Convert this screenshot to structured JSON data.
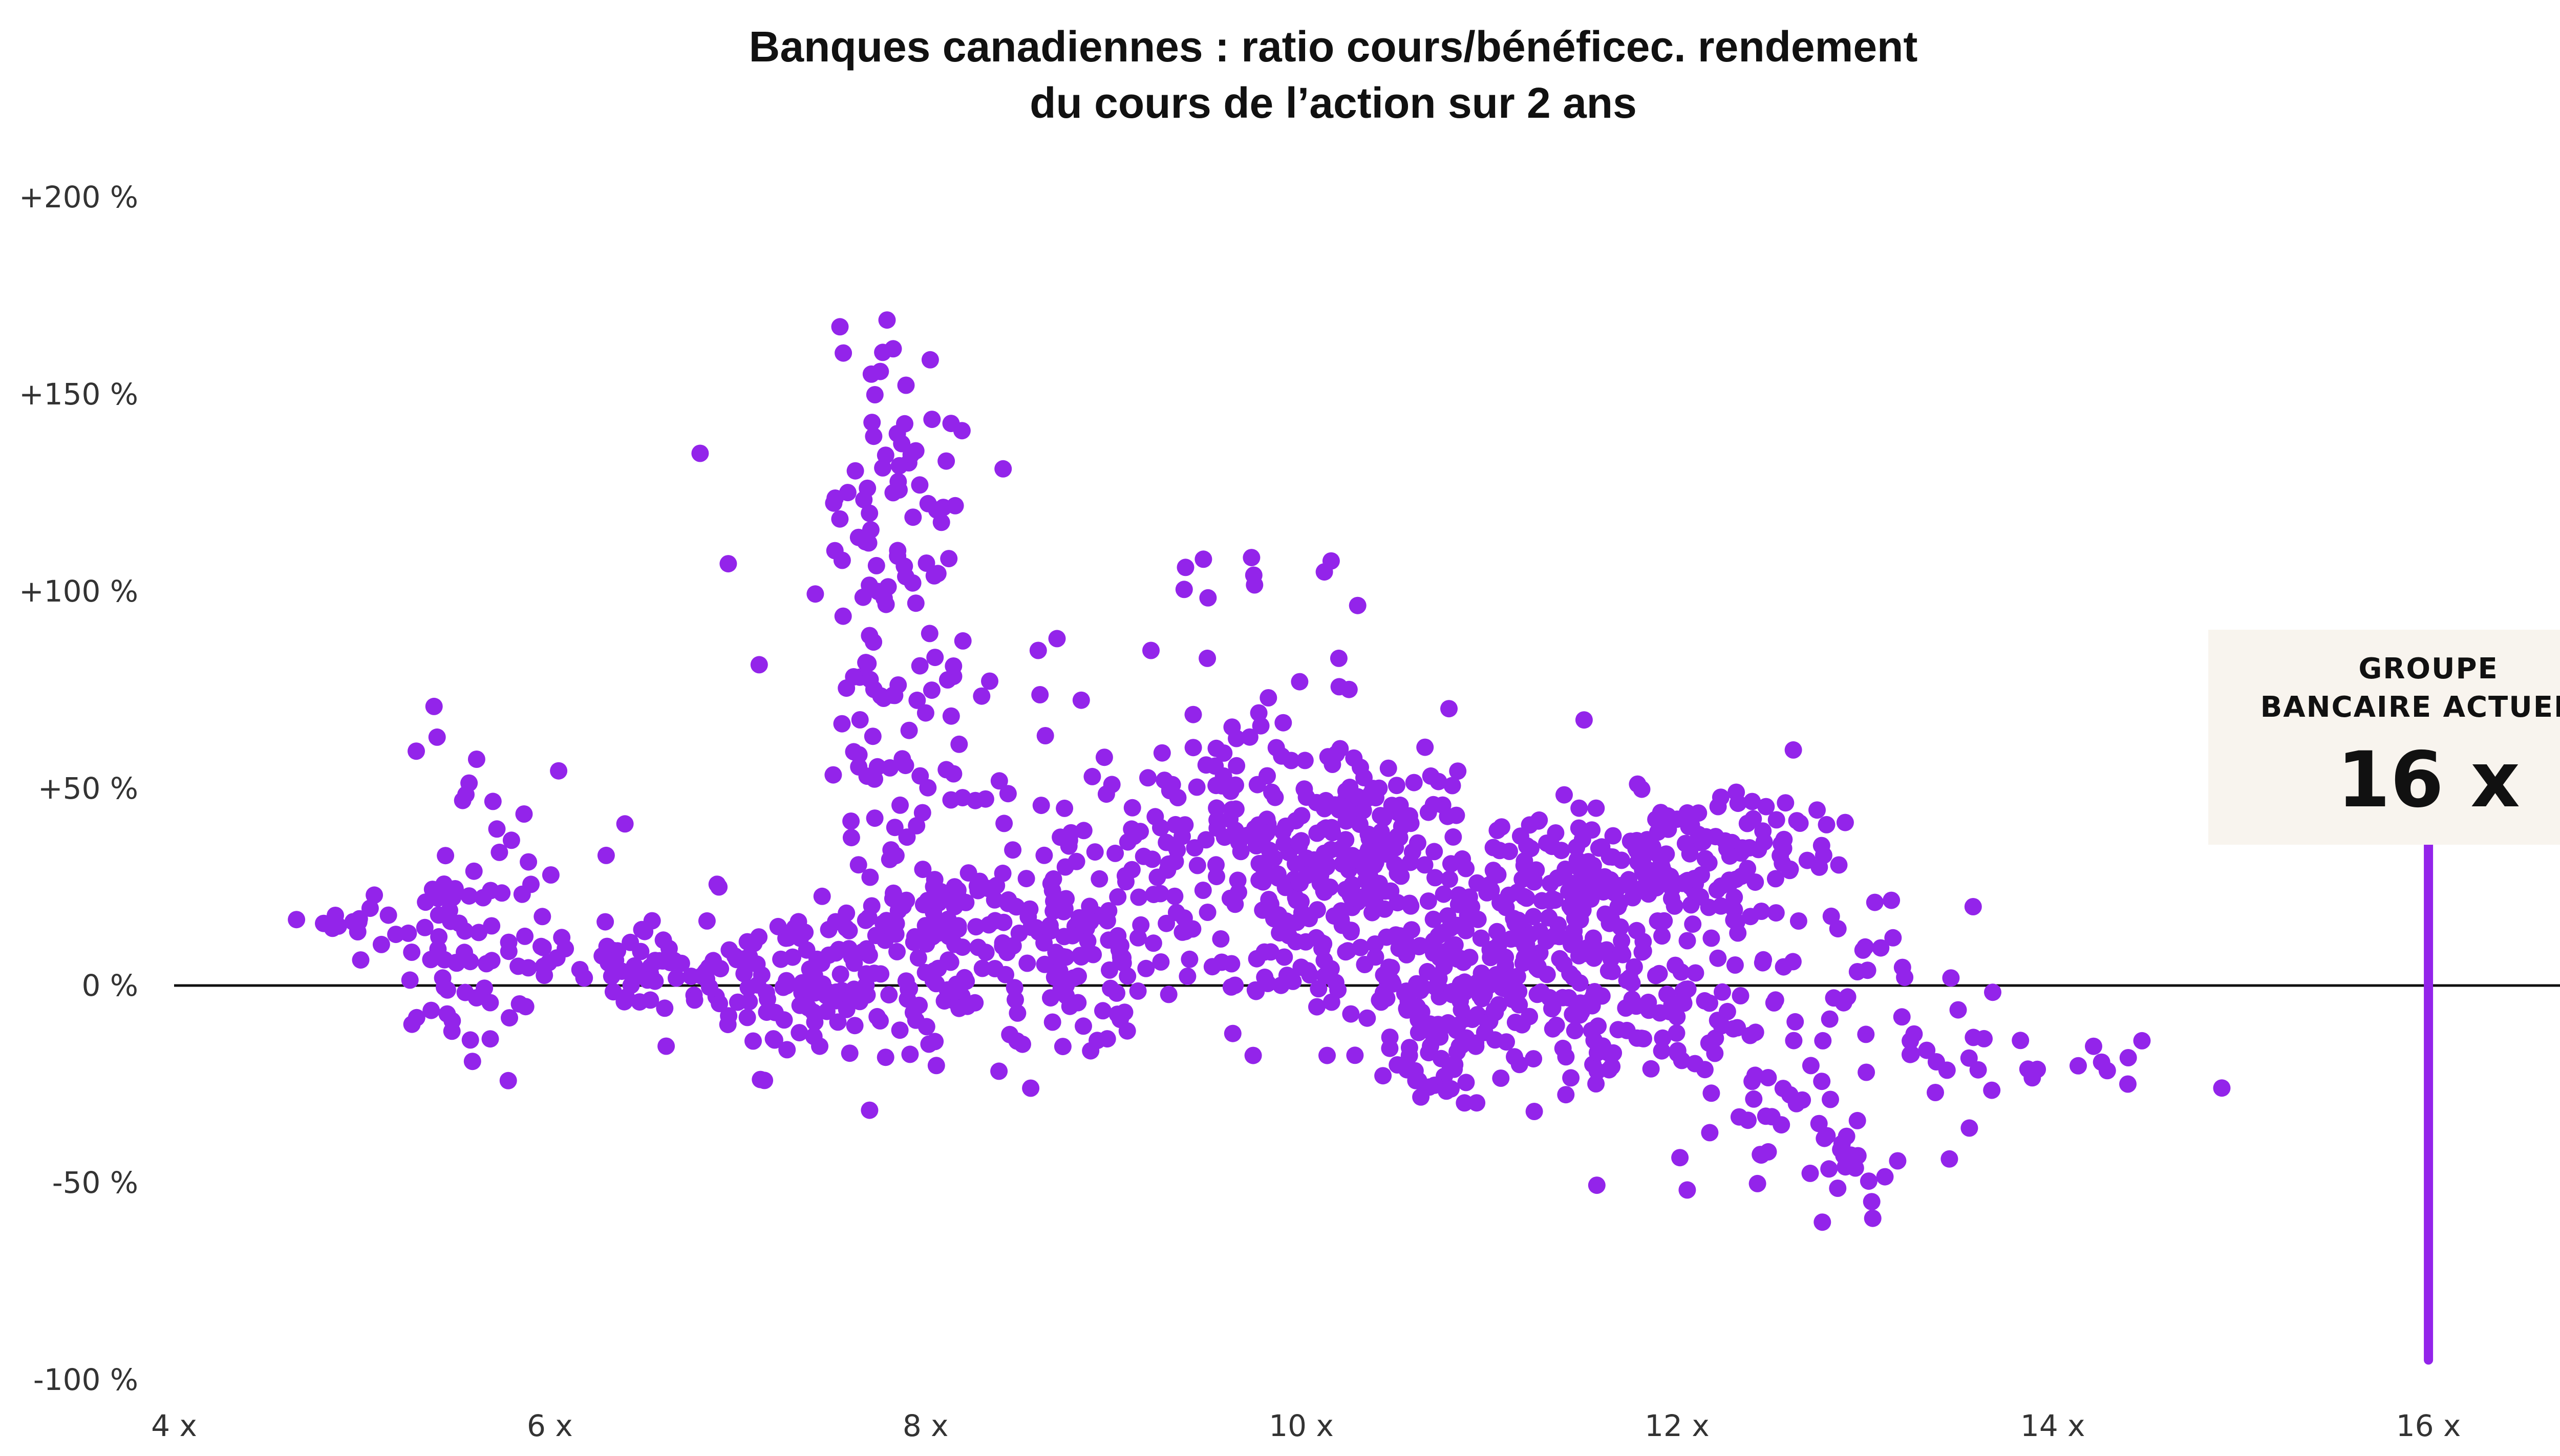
{
  "chart_data": {
    "type": "scatter",
    "title_lines": [
      "Banques canadiennes : ratio cours/bénéficec. rendement",
      "du cours de l’action sur 2 ans"
    ],
    "xlabel": "",
    "ylabel": "",
    "xlim": [
      4,
      17
    ],
    "ylim": [
      -100,
      200
    ],
    "x_ticks": [
      4,
      6,
      8,
      10,
      12,
      14,
      16
    ],
    "x_tick_labels": [
      "4 x",
      "6 x",
      "8 x",
      "10 x",
      "12 x",
      "14 x",
      "16 x"
    ],
    "y_ticks": [
      200,
      150,
      100,
      50,
      0,
      -50,
      -100
    ],
    "y_tick_labels": [
      "+200 %",
      "+150 %",
      "+100 %",
      "+50 %",
      "0 %",
      "-50 %",
      "-100 %"
    ],
    "baseline_y": 0,
    "grid": false,
    "point_color": "#9324ea",
    "callout": {
      "label_lines": [
        "GROUPE",
        "BANCAIRE ACTUEL :"
      ],
      "value": "16 x",
      "x": 16,
      "line_from_y": -95,
      "box_color": "#f8f4ee",
      "line_color": "#9324ea"
    },
    "clusters": [
      {
        "cx": 4.9,
        "cy": 15,
        "sx": 0.15,
        "sy": 4,
        "n": 12
      },
      {
        "cx": 5.6,
        "cy": 8,
        "sx": 0.25,
        "sy": 14,
        "n": 70
      },
      {
        "cx": 5.6,
        "cy": 45,
        "sx": 0.2,
        "sy": 12,
        "n": 12
      },
      {
        "cx": 6.5,
        "cy": 4,
        "sx": 0.35,
        "sy": 5,
        "n": 60
      },
      {
        "cx": 7.3,
        "cy": 5,
        "sx": 0.3,
        "sy": 10,
        "n": 70
      },
      {
        "cx": 7.8,
        "cy": -5,
        "sx": 0.35,
        "sy": 8,
        "n": 60
      },
      {
        "cx": 7.8,
        "cy": 115,
        "sx": 0.18,
        "sy": 28,
        "n": 90
      },
      {
        "cx": 7.9,
        "cy": 60,
        "sx": 0.25,
        "sy": 18,
        "n": 40
      },
      {
        "cx": 8.1,
        "cy": 15,
        "sx": 0.35,
        "sy": 8,
        "n": 80
      },
      {
        "cx": 8.8,
        "cy": 10,
        "sx": 0.45,
        "sy": 12,
        "n": 120
      },
      {
        "cx": 9.2,
        "cy": 45,
        "sx": 0.4,
        "sy": 15,
        "n": 60
      },
      {
        "cx": 9.7,
        "cy": 103,
        "sx": 0.25,
        "sy": 5,
        "n": 10
      },
      {
        "cx": 9.9,
        "cy": 30,
        "sx": 0.35,
        "sy": 18,
        "n": 120
      },
      {
        "cx": 10.3,
        "cy": 35,
        "sx": 0.35,
        "sy": 14,
        "n": 150
      },
      {
        "cx": 10.6,
        "cy": 0,
        "sx": 0.3,
        "sy": 10,
        "n": 60
      },
      {
        "cx": 10.8,
        "cy": -15,
        "sx": 0.25,
        "sy": 7,
        "n": 50
      },
      {
        "cx": 11.2,
        "cy": 10,
        "sx": 0.35,
        "sy": 15,
        "n": 180
      },
      {
        "cx": 11.7,
        "cy": 30,
        "sx": 0.35,
        "sy": 8,
        "n": 90
      },
      {
        "cx": 12.2,
        "cy": 30,
        "sx": 0.3,
        "sy": 9,
        "n": 90
      },
      {
        "cx": 11.8,
        "cy": -5,
        "sx": 0.35,
        "sy": 10,
        "n": 80
      },
      {
        "cx": 12.5,
        "cy": -30,
        "sx": 0.3,
        "sy": 12,
        "n": 40
      },
      {
        "cx": 12.9,
        "cy": -45,
        "sx": 0.1,
        "sy": 4,
        "n": 10
      },
      {
        "cx": 13.1,
        "cy": 0,
        "sx": 0.35,
        "sy": 14,
        "n": 35
      },
      {
        "cx": 13.6,
        "cy": -17,
        "sx": 0.25,
        "sy": 5,
        "n": 10
      },
      {
        "cx": 14.1,
        "cy": -20,
        "sx": 0.22,
        "sy": 4,
        "n": 10
      }
    ],
    "extra_points": [
      [
        6.8,
        135
      ],
      [
        6.95,
        107
      ],
      [
        13.45,
        -44
      ],
      [
        14.9,
        -26
      ],
      [
        14.4,
        -25
      ],
      [
        9.2,
        85
      ],
      [
        9.5,
        83
      ],
      [
        8.7,
        88
      ],
      [
        8.6,
        85
      ],
      [
        10.2,
        83
      ],
      [
        5.4,
        63
      ],
      [
        6.4,
        41
      ],
      [
        6.3,
        33
      ],
      [
        6.9,
        25
      ]
    ]
  }
}
